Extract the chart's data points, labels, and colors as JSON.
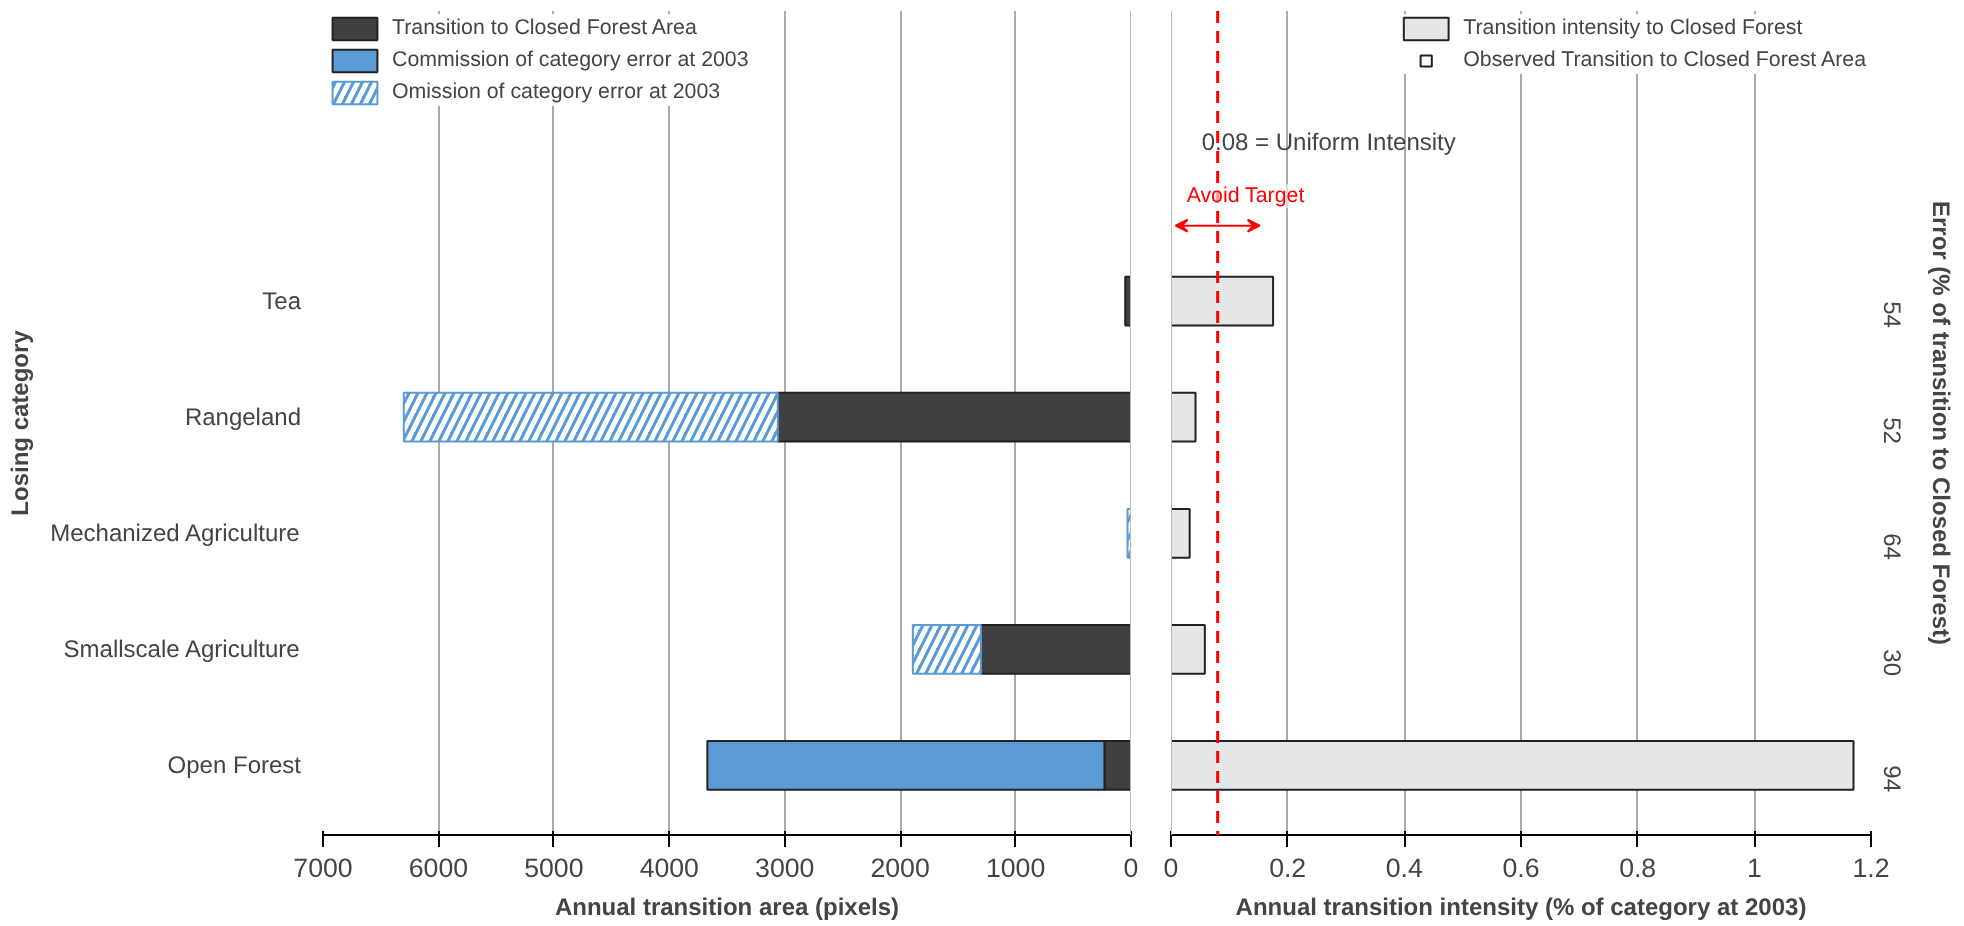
{
  "chart_data": [
    {
      "type": "bar",
      "orientation": "horizontal",
      "stacked": true,
      "xlabel": "Annual transition area (pixels)",
      "ylabel": "Losing category",
      "categories": [
        "Tea",
        "Rangeland",
        "Mechanized Agriculture",
        "Smallscale Agriculture",
        "Open Forest"
      ],
      "series": [
        {
          "name": "Transition to Closed Forest Area",
          "color": "#404040",
          "values": [
            50,
            3060,
            0,
            1300,
            230
          ]
        },
        {
          "name": "Commission of category error at 2003",
          "color": "#5b9bd5",
          "values": [
            null,
            null,
            null,
            null,
            3440
          ]
        },
        {
          "name": "Omission of category error at 2003",
          "color": "#5b9bd5",
          "values": [
            null,
            3240,
            30,
            590,
            null
          ]
        }
      ],
      "xlim": [
        7000,
        0
      ],
      "xticks": [
        7000,
        6000,
        5000,
        4000,
        3000,
        2000,
        1000,
        0
      ],
      "grid": "x",
      "legend": "top left"
    },
    {
      "type": "bar",
      "orientation": "horizontal",
      "xlabel": "Annual transition intensity (% of category at 2003)",
      "y2label": "Error (% of transition to Closed Forest)",
      "categories": [
        null,
        null,
        null,
        null,
        null
      ],
      "y2_categories": [
        "54",
        "52",
        "64",
        "30",
        "94"
      ],
      "series": [
        {
          "name": "Transition intensity to Closed Forest",
          "color": "#e6e6e6",
          "values": [
            0.175,
            0.042,
            0.032,
            0.058,
            1.17
          ]
        },
        {
          "name": "Observed Transition to Closed Forest Area",
          "color": "#ffffff",
          "values": [
            null,
            null,
            null,
            null,
            null
          ]
        }
      ],
      "xlim": [
        0,
        1.2
      ],
      "xticks": [
        0,
        0.2,
        0.4,
        0.6,
        0.8,
        1,
        1.2
      ],
      "grid": "x",
      "legend": "top right",
      "ref_lines": [
        {
          "axis": "x",
          "value": 0.08,
          "label": "0.08 = Uniform Intensity",
          "color": "#ff0000",
          "line_style": "dashed"
        }
      ],
      "annotations": [
        "Avoid Target"
      ]
    }
  ]
}
